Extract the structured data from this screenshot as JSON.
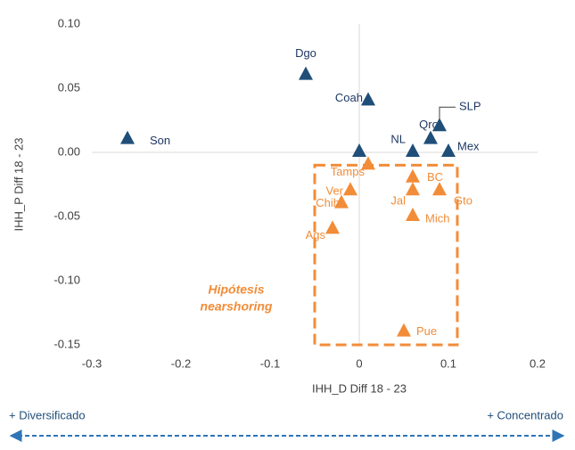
{
  "chart_data": {
    "type": "scatter",
    "xlabel": "IHH_D Diff 18 - 23",
    "ylabel": "IHH_P Diff 18 - 23",
    "xlim": [
      -0.3,
      0.2
    ],
    "ylim": [
      -0.15,
      0.1
    ],
    "xticks": [
      -0.3,
      -0.2,
      -0.1,
      0,
      0.1,
      0.2
    ],
    "yticks": [
      {
        "value": -0.15,
        "label": "-0.15"
      },
      {
        "value": -0.1,
        "label": "-0.10"
      },
      {
        "value": -0.05,
        "label": "-0.05"
      },
      {
        "value": 0,
        "label": "0.00"
      },
      {
        "value": 0.05,
        "label": "0.05"
      },
      {
        "value": 0.1,
        "label": "0.10"
      }
    ],
    "series": [
      {
        "color": "#1f4e79",
        "labels": [
          "Son",
          "Dgo",
          "Coah",
          null,
          "NL",
          "Qro",
          "SLP",
          "Mex"
        ],
        "x": [
          -0.26,
          -0.06,
          0.01,
          0,
          0.06,
          0.08,
          0.09,
          0.1
        ],
        "values": [
          0.01,
          0.06,
          0.04,
          0,
          0,
          0.01,
          0.02,
          0
        ]
      },
      {
        "color": "#f28c38",
        "labels": [
          "Tamps",
          "Ver",
          "Chih",
          "Ags",
          "BC",
          "Jal",
          "Gto",
          "Mich",
          "Pue"
        ],
        "x": [
          0.01,
          -0.01,
          -0.02,
          -0.03,
          0.06,
          0.06,
          0.09,
          0.06,
          0.05
        ],
        "values": [
          -0.01,
          -0.03,
          -0.04,
          -0.06,
          -0.02,
          -0.03,
          -0.03,
          -0.05,
          -0.14
        ]
      }
    ],
    "annotations": [
      "Hipótesis",
      "nearshoring",
      "+ Diversificado",
      "+ Concentrado"
    ],
    "highlight_box": {
      "x": [
        -0.05,
        0.11
      ],
      "y": [
        -0.15,
        -0.01
      ]
    }
  }
}
